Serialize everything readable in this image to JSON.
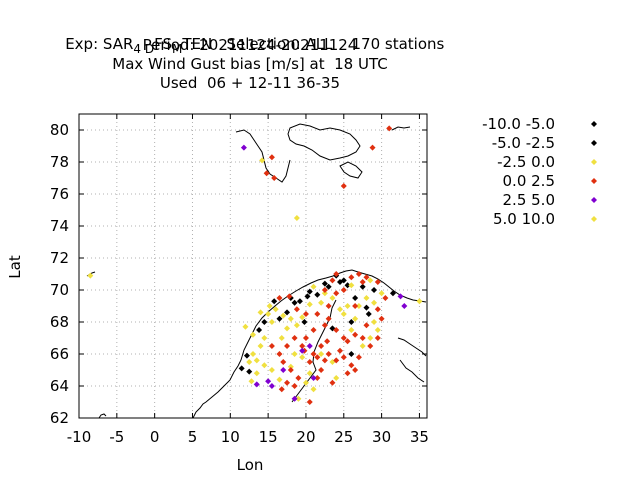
{
  "header": {
    "line1": "Exp: SAR",
    "line1_sub1": "4 D",
    "line1_mid": "FS",
    "line1_sub2": "M",
    "line1_rest": "TEN   Selection: ALL    170 stations",
    "line2": "Period: 20211124-20211124",
    "line3": "Max Wind Gust bias [m/s] at  18 UTC",
    "line4": "Used  06 + 12-11 36-35"
  },
  "chart_data": {
    "type": "scatter",
    "xlabel": "Lon",
    "ylabel": "Lat",
    "xlim": [
      -10,
      36
    ],
    "ylim": [
      62,
      81
    ],
    "xticks": [
      -10,
      -5,
      0,
      5,
      10,
      15,
      20,
      25,
      30,
      35
    ],
    "yticks": [
      62,
      64,
      66,
      68,
      70,
      72,
      74,
      76,
      78,
      80
    ],
    "xtick_labels": [
      "-10",
      "-5",
      "0",
      "5",
      "10",
      "15",
      "20",
      "25",
      "30",
      "35"
    ],
    "ytick_labels": [
      "62",
      "64",
      "66",
      "68",
      "70",
      "72",
      "74",
      "76",
      "78",
      "80"
    ],
    "grid": true,
    "legend_position": "right",
    "series": [
      {
        "name": "-10.0 -5.0",
        "color": "#000000",
        "points": [
          [
            25.0,
            70.6
          ],
          [
            21.5,
            69.7
          ],
          [
            23.0,
            70.2
          ],
          [
            24.5,
            70.5
          ],
          [
            26.5,
            69.5
          ],
          [
            28.3,
            68.5
          ],
          [
            19.2,
            69.3
          ],
          [
            20.2,
            69.6
          ],
          [
            18.5,
            69.2
          ],
          [
            11.5,
            65.1
          ],
          [
            12.5,
            64.9
          ],
          [
            16.5,
            68.2
          ],
          [
            26.0,
            68.0
          ],
          [
            27.5,
            70.2
          ],
          [
            29.0,
            70.0
          ],
          [
            24.0,
            70.9
          ],
          [
            25.5,
            70.3
          ],
          [
            22.5,
            70.4
          ],
          [
            17.5,
            68.6
          ],
          [
            20.5,
            69.9
          ],
          [
            31.5,
            69.8
          ],
          [
            19.8,
            68.0
          ],
          [
            28.0,
            68.9
          ]
        ]
      },
      {
        "name": "-5.0 -2.5",
        "color": "#000000",
        "points": [
          [
            14.5,
            68.0
          ],
          [
            13.8,
            67.5
          ],
          [
            12.2,
            65.9
          ],
          [
            15.8,
            69.3
          ],
          [
            18.0,
            69.5
          ],
          [
            26.0,
            66.0
          ],
          [
            23.5,
            67.6
          ]
        ]
      },
      {
        "name": "-2.5 0.0",
        "color": "#f0e040",
        "points": [
          [
            -8.5,
            70.9
          ],
          [
            18.8,
            74.5
          ],
          [
            14.2,
            78.1
          ],
          [
            12.0,
            67.7
          ],
          [
            13.0,
            67.2
          ],
          [
            14.5,
            67.0
          ],
          [
            15.0,
            68.5
          ],
          [
            15.5,
            68.0
          ],
          [
            14.0,
            68.6
          ],
          [
            15.2,
            69.0
          ],
          [
            16.0,
            68.8
          ],
          [
            17.0,
            68.4
          ],
          [
            18.0,
            68.2
          ],
          [
            18.8,
            67.8
          ],
          [
            19.5,
            68.3
          ],
          [
            20.5,
            69.1
          ],
          [
            22.0,
            69.2
          ],
          [
            23.5,
            69.5
          ],
          [
            24.5,
            68.8
          ],
          [
            25.5,
            69.0
          ],
          [
            26.5,
            68.2
          ],
          [
            27.0,
            69.0
          ],
          [
            28.0,
            69.5
          ],
          [
            29.0,
            68.0
          ],
          [
            29.5,
            67.5
          ],
          [
            28.5,
            67.0
          ],
          [
            12.5,
            65.5
          ],
          [
            13.0,
            66.0
          ],
          [
            13.5,
            65.6
          ],
          [
            14.0,
            66.5
          ],
          [
            14.5,
            65.3
          ],
          [
            15.5,
            65.0
          ],
          [
            12.8,
            64.3
          ],
          [
            13.5,
            64.8
          ],
          [
            16.5,
            64.4
          ],
          [
            18.0,
            65.2
          ],
          [
            19.5,
            65.8
          ],
          [
            20.0,
            64.2
          ],
          [
            20.5,
            64.8
          ],
          [
            19.0,
            63.2
          ],
          [
            18.5,
            66.0
          ],
          [
            21.0,
            63.8
          ],
          [
            22.0,
            66.0
          ],
          [
            23.5,
            65.5
          ],
          [
            24.0,
            64.5
          ],
          [
            25.0,
            68.5
          ],
          [
            26.0,
            67.5
          ],
          [
            27.5,
            66.5
          ],
          [
            29.0,
            69.2
          ],
          [
            30.0,
            69.8
          ],
          [
            35.0,
            69.3
          ],
          [
            21.0,
            70.2
          ],
          [
            22.5,
            69.8
          ],
          [
            26.0,
            70.3
          ],
          [
            28.5,
            70.6
          ],
          [
            17.5,
            67.6
          ],
          [
            16.8,
            67.0
          ]
        ]
      },
      {
        "name": "0.0 2.5",
        "color": "#e03010",
        "points": [
          [
            31.0,
            80.1
          ],
          [
            28.8,
            78.9
          ],
          [
            15.5,
            78.3
          ],
          [
            14.8,
            77.3
          ],
          [
            15.8,
            77.0
          ],
          [
            25.0,
            76.5
          ],
          [
            22.5,
            70.0
          ],
          [
            24.0,
            69.8
          ],
          [
            26.0,
            70.8
          ],
          [
            27.5,
            70.5
          ],
          [
            27.0,
            71.0
          ],
          [
            28.0,
            70.8
          ],
          [
            29.5,
            70.5
          ],
          [
            30.5,
            69.5
          ],
          [
            23.0,
            69.0
          ],
          [
            21.5,
            68.5
          ],
          [
            22.5,
            67.8
          ],
          [
            24.0,
            67.5
          ],
          [
            25.0,
            67.0
          ],
          [
            21.0,
            67.5
          ],
          [
            20.0,
            67.0
          ],
          [
            19.5,
            66.5
          ],
          [
            18.5,
            67.0
          ],
          [
            17.5,
            66.5
          ],
          [
            16.5,
            66.0
          ],
          [
            15.5,
            66.5
          ],
          [
            17.0,
            65.5
          ],
          [
            18.0,
            65.0
          ],
          [
            19.0,
            64.5
          ],
          [
            18.5,
            64.0
          ],
          [
            17.5,
            64.2
          ],
          [
            16.8,
            63.8
          ],
          [
            20.5,
            65.5
          ],
          [
            21.5,
            65.8
          ],
          [
            22.0,
            66.5
          ],
          [
            23.0,
            66.0
          ],
          [
            24.5,
            66.2
          ],
          [
            25.5,
            66.8
          ],
          [
            26.5,
            67.2
          ],
          [
            27.5,
            67.0
          ],
          [
            28.0,
            67.8
          ],
          [
            26.5,
            69.0
          ],
          [
            23.0,
            68.2
          ],
          [
            20.0,
            68.5
          ],
          [
            18.8,
            68.8
          ],
          [
            16.5,
            69.5
          ],
          [
            17.8,
            69.6
          ],
          [
            23.5,
            70.6
          ],
          [
            25.0,
            70.0
          ],
          [
            24.0,
            71.0
          ],
          [
            22.0,
            65.0
          ],
          [
            21.0,
            66.0
          ],
          [
            23.5,
            64.2
          ],
          [
            25.0,
            65.8
          ],
          [
            26.0,
            65.3
          ],
          [
            27.0,
            65.8
          ],
          [
            28.5,
            66.5
          ],
          [
            29.5,
            68.8
          ],
          [
            20.5,
            63.0
          ],
          [
            21.5,
            64.5
          ],
          [
            22.8,
            66.8
          ],
          [
            24.0,
            65.6
          ],
          [
            19.8,
            66.2
          ],
          [
            22.5,
            65.6
          ],
          [
            25.5,
            64.8
          ],
          [
            26.5,
            65.0
          ],
          [
            29.5,
            67.0
          ],
          [
            30.0,
            68.2
          ]
        ]
      },
      {
        "name": "2.5 5.0",
        "color": "#8000d0",
        "points": [
          [
            11.8,
            78.9
          ],
          [
            13.5,
            64.1
          ],
          [
            15.0,
            64.3
          ],
          [
            15.5,
            64.0
          ],
          [
            17.0,
            65.0
          ],
          [
            18.5,
            63.2
          ],
          [
            19.5,
            66.2
          ],
          [
            20.5,
            66.5
          ],
          [
            21.0,
            64.5
          ],
          [
            32.5,
            69.6
          ],
          [
            33.0,
            69.0
          ]
        ]
      },
      {
        "name": "5.0 10.0",
        "color": "#f0e040",
        "points": []
      }
    ]
  },
  "legend_colors": [
    "#000000",
    "#000000",
    "#f0e040",
    "#e03010",
    "#8000d0",
    "#f0e040"
  ]
}
